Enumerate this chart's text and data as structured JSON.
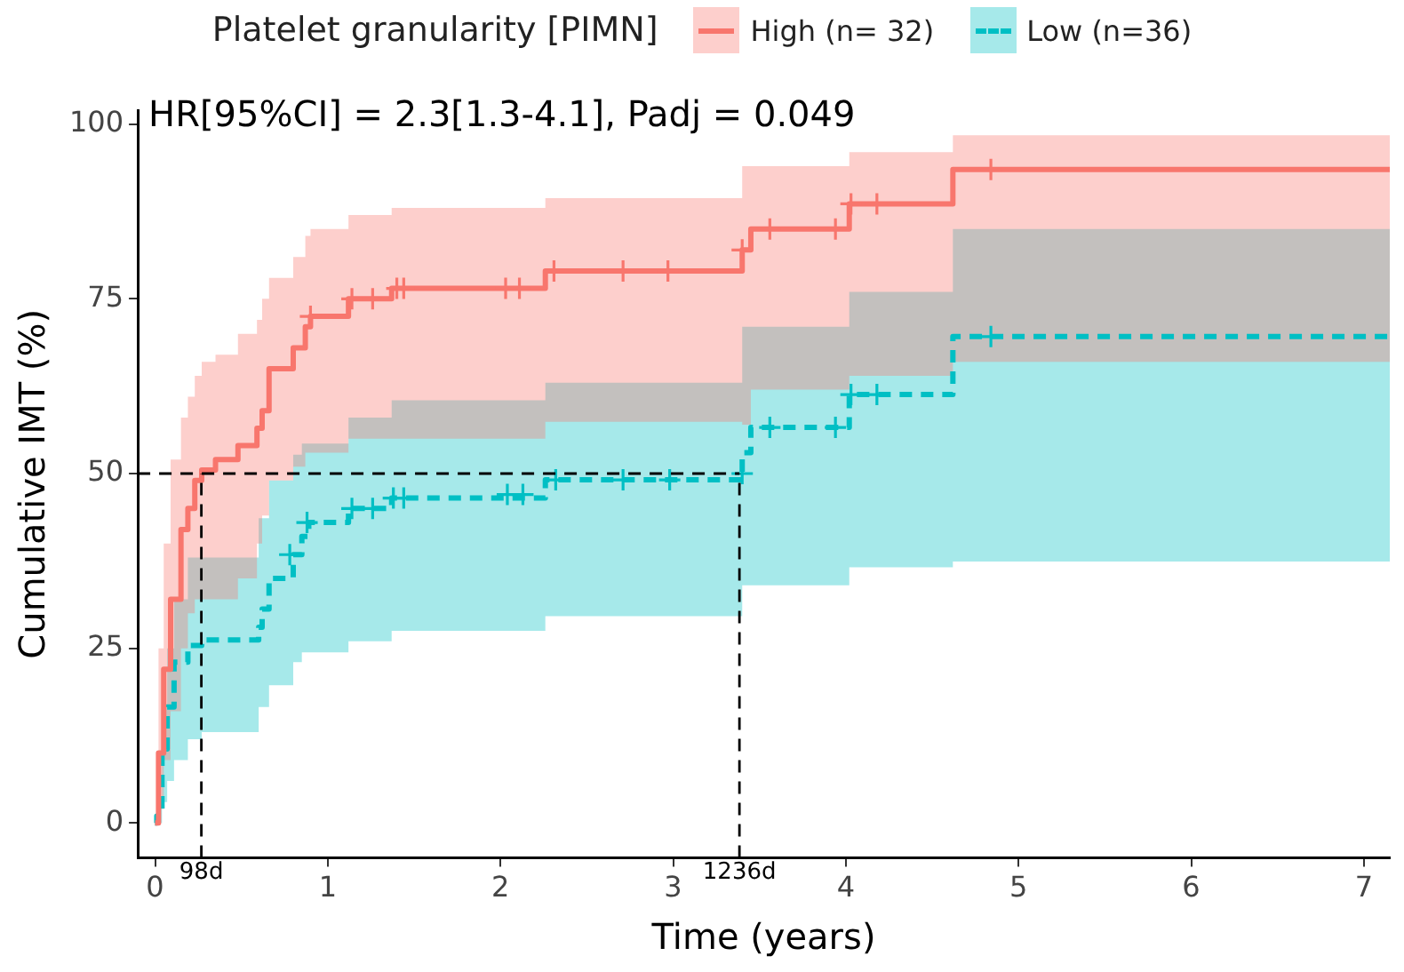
{
  "chart_data": {
    "type": "step",
    "legend_title": "Platelet granularity [PIMN]",
    "xlabel": "Time (years)",
    "ylabel": "Cumulative IMT (%)",
    "annotations": [
      "HR[95%CI] = 2.3[1.3-4.1], Padj = 0.049"
    ],
    "xlim": [
      -0.1,
      7.15
    ],
    "xticks": [
      0,
      1,
      2,
      3,
      4,
      5,
      6,
      7
    ],
    "ylim": [
      -5,
      102
    ],
    "yticks": [
      0,
      25,
      50,
      75,
      100
    ],
    "grid": false,
    "legend": "top",
    "ref_lines": [
      {
        "axis": "y",
        "value": 50,
        "label": null,
        "line_style": "dashed",
        "color": "#000000"
      },
      {
        "axis": "x",
        "value": 0.268,
        "label": "98d",
        "line_style": "dashed",
        "color": "#000000"
      },
      {
        "axis": "x",
        "value": 3.384,
        "label": "1236d",
        "line_style": "dashed",
        "color": "#000000"
      }
    ],
    "series": [
      {
        "name": "High (n= 32)",
        "color": "#f8766d",
        "line_style": "solid",
        "marker": "none",
        "x": [
          0,
          0.02,
          0.05,
          0.09,
          0.15,
          0.19,
          0.23,
          0.27,
          0.35,
          0.48,
          0.59,
          0.62,
          0.66,
          0.8,
          0.87,
          0.9,
          1.12,
          1.37,
          2.26,
          3.4,
          3.45,
          4.02,
          4.62,
          7.15
        ],
        "values": [
          0,
          10,
          22,
          32,
          42,
          45,
          49,
          50.5,
          52,
          54,
          56.5,
          59,
          65,
          68,
          71,
          72.5,
          75,
          76.5,
          79,
          82,
          85,
          88.6,
          93.5,
          93.5
        ],
        "lower": [
          0,
          2,
          9,
          16,
          25,
          30,
          32,
          32,
          32,
          35,
          40,
          44,
          49,
          51,
          53,
          53,
          55,
          55,
          57.4,
          57,
          62,
          64,
          66,
          66
        ],
        "upper": [
          0,
          25,
          40,
          52,
          58,
          61,
          64,
          66,
          67,
          70,
          72,
          75,
          78,
          81,
          84,
          85,
          87,
          88,
          89.4,
          94,
          94,
          96,
          98.4,
          98.4
        ]
      },
      {
        "name": "Low (n=36)",
        "color": "#00bfc4",
        "line_style": "dashed",
        "marker": "none",
        "x": [
          0,
          0.01,
          0.04,
          0.07,
          0.11,
          0.19,
          0.27,
          0.6,
          0.62,
          0.66,
          0.8,
          0.85,
          0.89,
          1.12,
          1.37,
          2.26,
          3.4,
          3.45,
          4.02,
          4.62,
          7.15
        ],
        "values": [
          0,
          1,
          10.6,
          16.6,
          23,
          25.4,
          26.2,
          28,
          30.6,
          35,
          38.4,
          41,
          43,
          45,
          46.5,
          49.1,
          53,
          56.6,
          61.3,
          69.6,
          69.6
        ],
        "lower": [
          0,
          0,
          3,
          6,
          9,
          12,
          13,
          16.6,
          16.6,
          19.7,
          23,
          24.4,
          24.4,
          26,
          27.5,
          29.6,
          34,
          34,
          36.6,
          37.4,
          37.4
        ],
        "upper": [
          0,
          3,
          17,
          25,
          32,
          38,
          38,
          43.6,
          43.6,
          49,
          52.7,
          54.3,
          54.3,
          58,
          60.5,
          63,
          71,
          71,
          76,
          85,
          85
        ]
      },
      {
        "type": "scatter",
        "color": "#f8766d",
        "marker": "cross",
        "x": [
          0.9,
          1.14,
          1.26,
          1.4,
          1.44,
          2.03,
          2.11,
          2.31,
          2.71,
          2.97,
          3.4,
          3.56,
          3.94,
          4.03,
          4.18,
          4.84
        ],
        "values": [
          72.5,
          75,
          75,
          76.5,
          76.5,
          76.5,
          76.5,
          79,
          79,
          79,
          82,
          85,
          85,
          88.6,
          88.6,
          93.5
        ]
      },
      {
        "type": "scatter",
        "color": "#00bfc4",
        "marker": "cross",
        "x": [
          0.78,
          0.88,
          1.14,
          1.26,
          1.38,
          1.44,
          2.04,
          2.13,
          2.32,
          2.71,
          2.98,
          3.4,
          3.56,
          3.94,
          4.03,
          4.18,
          4.84
        ],
        "values": [
          38.4,
          43,
          45,
          45,
          46.5,
          46.5,
          47,
          47,
          49.1,
          49.1,
          49.1,
          50,
          56.6,
          56.6,
          61.3,
          61.3,
          69.6
        ]
      }
    ]
  }
}
